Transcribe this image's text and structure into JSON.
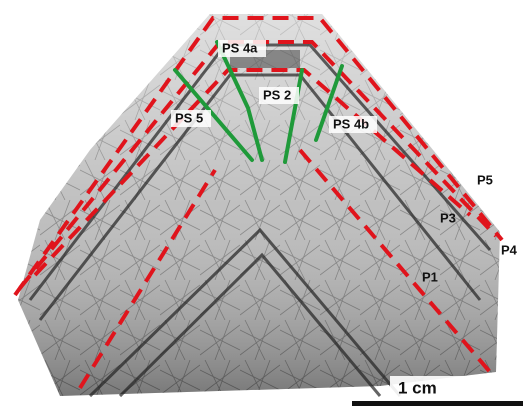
{
  "labels": {
    "ps4a": "PS 4a",
    "ps2": "PS 2",
    "ps5": "PS 5",
    "ps4b": "PS 4b",
    "p5": "P5",
    "p3": "P3",
    "p4": "P4",
    "p1": "P1"
  },
  "scale_bar": "1 cm"
}
